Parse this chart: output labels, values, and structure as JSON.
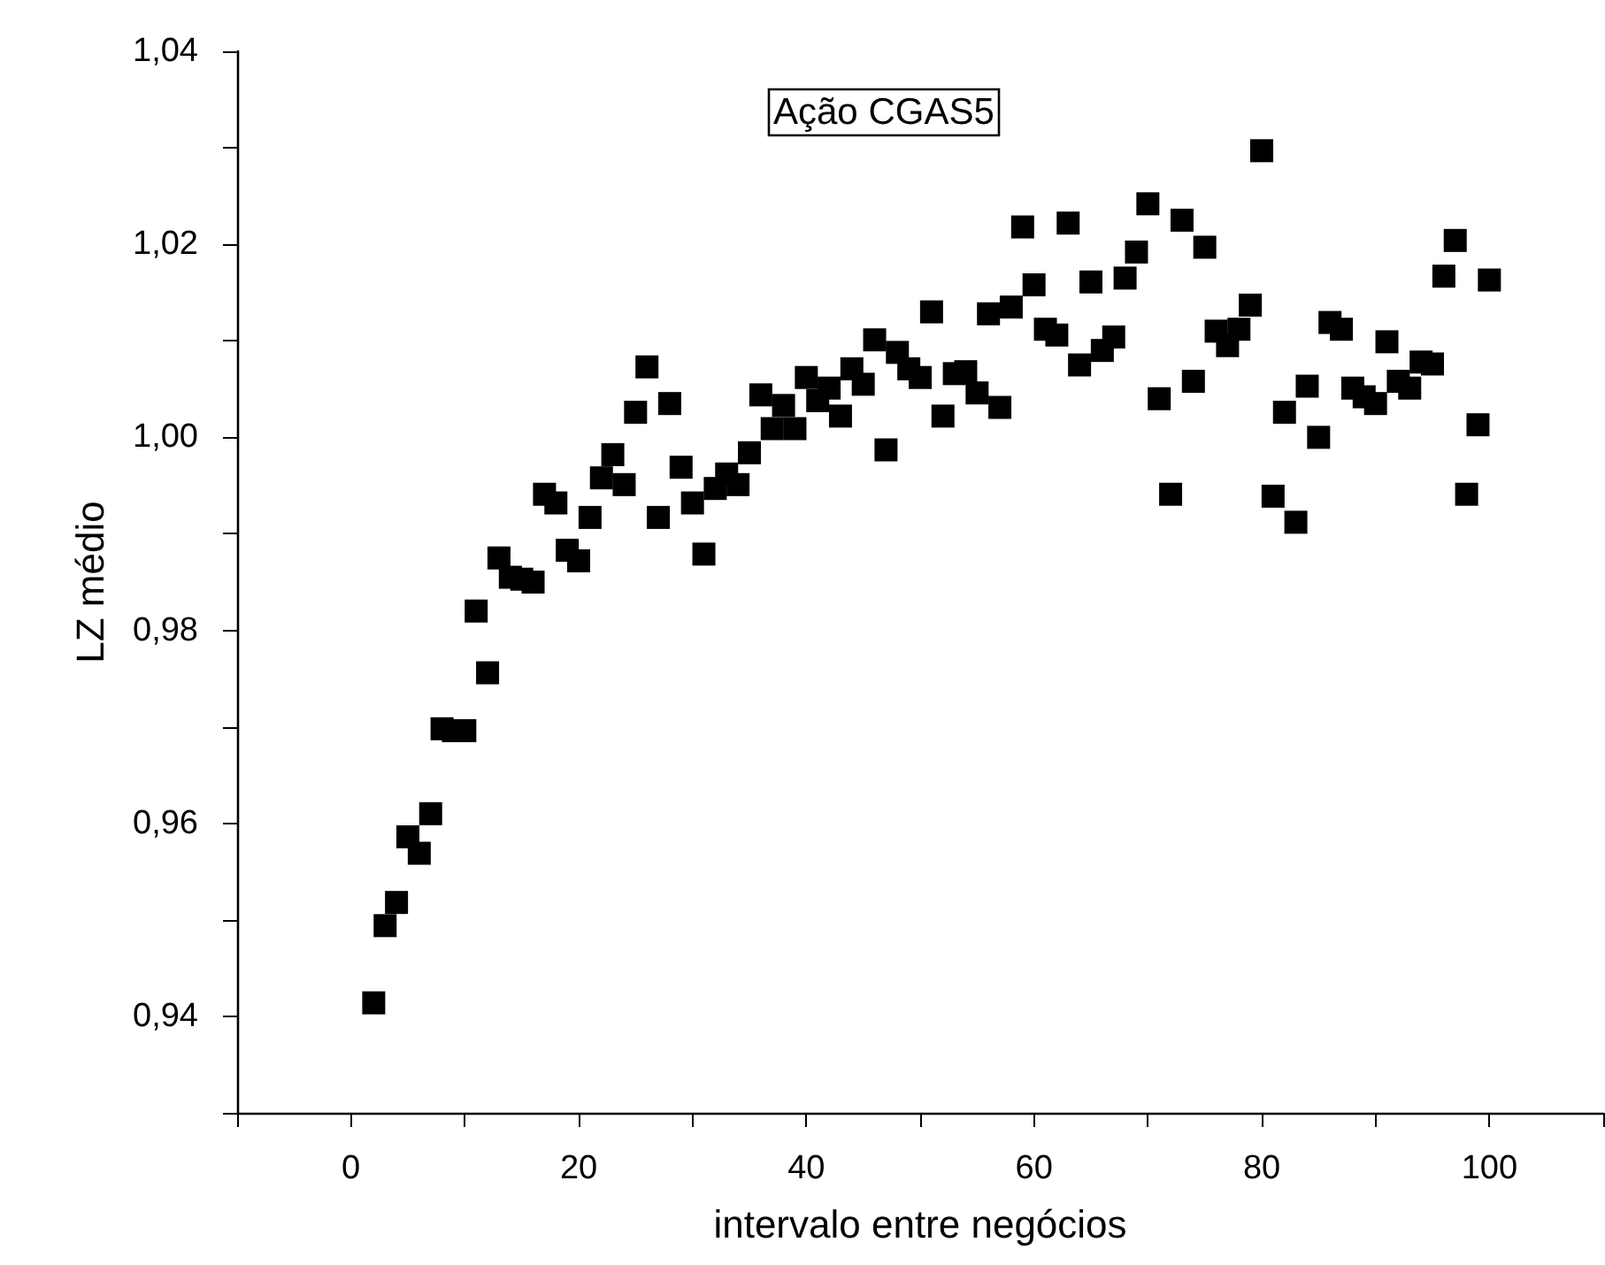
{
  "chart_data": {
    "type": "scatter",
    "title": "Ação CGAS5",
    "xlabel": "intervalo entre negócios",
    "ylabel": "LZ médio",
    "marker": "square",
    "color": "#000000",
    "x": [
      2,
      3,
      4,
      5,
      6,
      7,
      8,
      9,
      10,
      11,
      12,
      13,
      14,
      15,
      16,
      17,
      18,
      19,
      20,
      21,
      22,
      23,
      24,
      25,
      26,
      27,
      28,
      29,
      30,
      31,
      32,
      33,
      34,
      35,
      36,
      37,
      38,
      39,
      40,
      41,
      42,
      43,
      44,
      45,
      46,
      47,
      48,
      49,
      50,
      51,
      52,
      53,
      54,
      55,
      56,
      57,
      58,
      59,
      60,
      61,
      62,
      63,
      64,
      65,
      66,
      67,
      68,
      69,
      70,
      71,
      72,
      73,
      74,
      75,
      76,
      77,
      78,
      79,
      80,
      81,
      82,
      83,
      84,
      85,
      86,
      87,
      88,
      89,
      90,
      91,
      92,
      93,
      94,
      95,
      96,
      97,
      98,
      99,
      100
    ],
    "values": [
      0.9414,
      0.9494,
      0.9518,
      0.9586,
      0.9569,
      0.961,
      0.9698,
      0.9696,
      0.9696,
      0.982,
      0.9756,
      0.9875,
      0.9855,
      0.9853,
      0.985,
      0.9941,
      0.9932,
      0.9883,
      0.9872,
      0.9917,
      0.9958,
      0.9982,
      0.9951,
      1.0026,
      1.0073,
      0.9917,
      1.0035,
      0.9969,
      0.9932,
      0.9879,
      0.9947,
      0.9962,
      0.9951,
      0.9984,
      1.0044,
      1.0009,
      1.0033,
      1.0009,
      1.0062,
      1.0038,
      1.0051,
      1.0022,
      1.0071,
      1.0055,
      1.0101,
      0.9987,
      1.0088,
      1.0071,
      1.0062,
      1.013,
      1.0022,
      1.0066,
      1.0068,
      1.0046,
      1.0128,
      1.0031,
      1.0135,
      1.0218,
      1.0158,
      1.0112,
      1.0106,
      1.0222,
      1.0075,
      1.0161,
      1.009,
      1.0104,
      1.0165,
      1.0192,
      1.0242,
      1.004,
      0.9941,
      1.0225,
      1.0058,
      1.0197,
      1.011,
      1.0095,
      1.0112,
      1.0137,
      1.0297,
      0.9939,
      1.0026,
      0.9912,
      1.0053,
      1.0,
      1.0119,
      1.0112,
      1.0051,
      1.0042,
      1.0035,
      1.0099,
      1.0058,
      1.0051,
      1.0078,
      1.0076,
      1.0167,
      1.0204,
      0.9941,
      1.0013,
      1.0163
    ],
    "xlim": [
      -10,
      110
    ],
    "xticks": [
      {
        "value": -10,
        "label": null
      },
      0,
      {
        "value": 10,
        "label": null
      },
      20,
      {
        "value": 30,
        "label": null
      },
      40,
      {
        "value": 50,
        "label": null
      },
      60,
      {
        "value": 70,
        "label": null
      },
      80,
      {
        "value": 90,
        "label": null
      },
      100,
      {
        "value": 110,
        "label": null
      }
    ],
    "ylim": [
      0.93,
      1.04
    ],
    "yticks": [
      {
        "value": 0.93,
        "label": null
      },
      {
        "value": 0.94,
        "label": "0,94"
      },
      {
        "value": 0.95,
        "label": null
      },
      {
        "value": 0.96,
        "label": "0,96"
      },
      {
        "value": 0.97,
        "label": null
      },
      {
        "value": 0.98,
        "label": "0,98"
      },
      {
        "value": 0.99,
        "label": null
      },
      {
        "value": 1.0,
        "label": "1,00"
      },
      {
        "value": 1.01,
        "label": null
      },
      {
        "value": 1.02,
        "label": "1,02"
      },
      {
        "value": 1.03,
        "label": null
      },
      {
        "value": 1.04,
        "label": "1,04"
      }
    ],
    "grid": false
  }
}
